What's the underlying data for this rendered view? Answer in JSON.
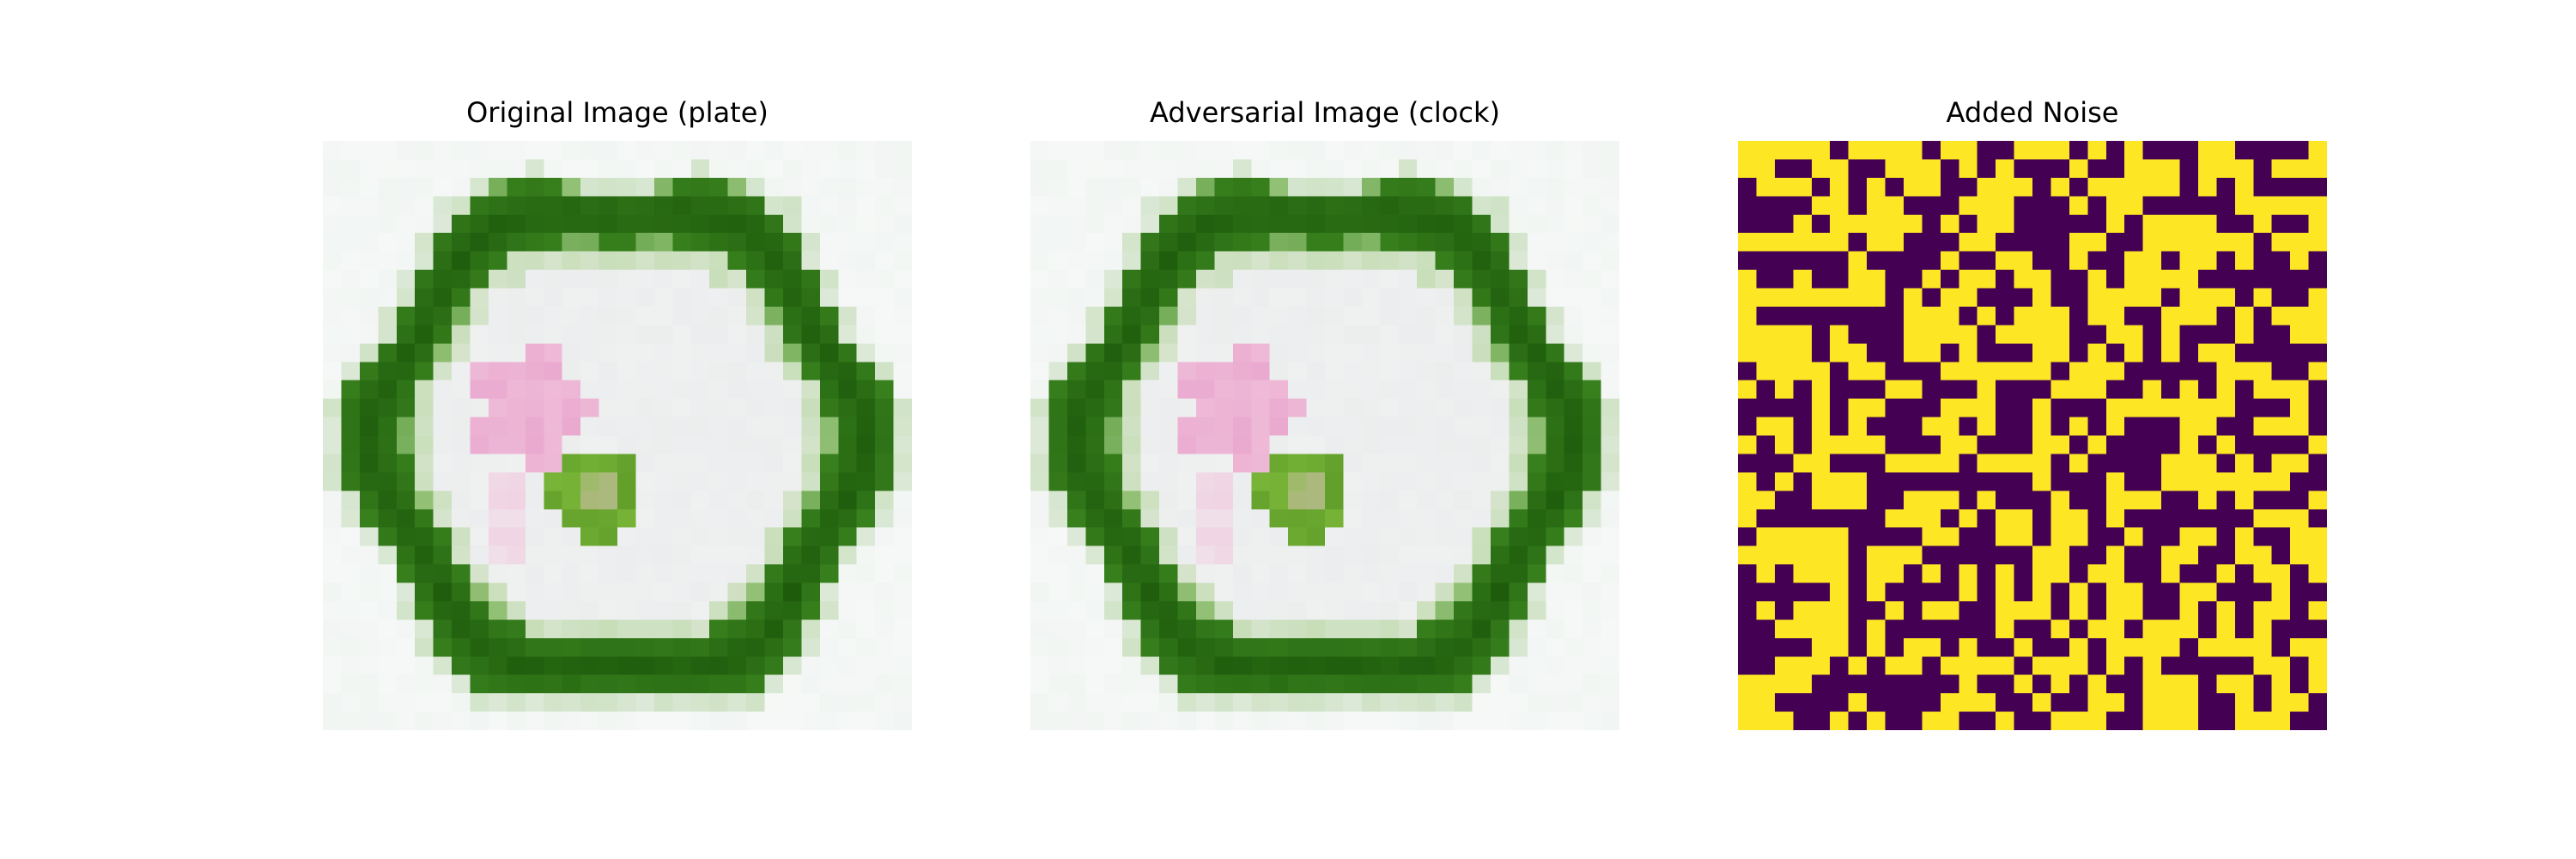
{
  "figure": {
    "panels": [
      {
        "title": "Original Image (plate)",
        "content": "plate-photo"
      },
      {
        "title": "Adversarial Image (clock)",
        "content": "plate-photo"
      },
      {
        "title": "Added Noise",
        "content": "binary-noise-map"
      }
    ]
  },
  "colors": {
    "background": "#eaf0ec",
    "rim_dark": "#1e5c0c",
    "rim_mid": "#3f8a22",
    "rim_light": "#a8cf8c",
    "plate_center": "#eff0f0",
    "flower_pink": "#e8a3cc",
    "flower_light": "#f1c4dc",
    "garnish_green": "#7dba3a",
    "garnish_dark": "#4e8c20",
    "noise_high": "#fde725",
    "noise_low": "#440154"
  }
}
